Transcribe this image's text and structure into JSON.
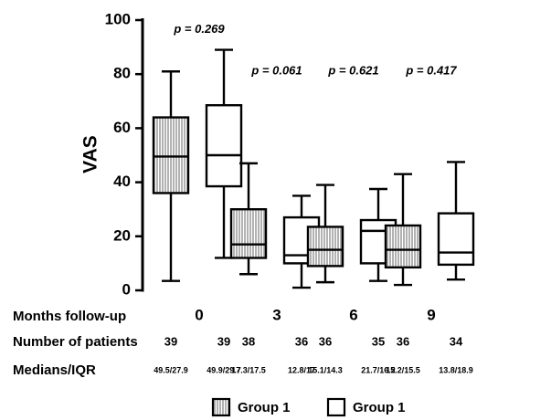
{
  "chart_data": {
    "type": "box",
    "ylabel": "VAS",
    "ylim": [
      0,
      100
    ],
    "yticks": [
      "0",
      "20",
      "40",
      "60",
      "80",
      "100"
    ],
    "row_labels": {
      "months": "Months follow-up",
      "patients": "Number of patients",
      "medians": "Medians/IQR"
    },
    "groups": [
      {
        "month": "0",
        "p_value": "p = 0.269",
        "boxes": [
          {
            "series": "Group 1",
            "whisker_low": 3.5,
            "q1": 36,
            "median": 49.5,
            "q3": 64,
            "whisker_high": 81,
            "n": "39",
            "median_iqr": "49.5/27.9"
          },
          {
            "series": "Group 1",
            "whisker_low": 12,
            "q1": 38.5,
            "median": 50,
            "q3": 68.5,
            "whisker_high": 89,
            "n": "39",
            "median_iqr": "49.9/29.7"
          }
        ]
      },
      {
        "month": "3",
        "p_value": "p = 0.061",
        "boxes": [
          {
            "series": "Group 1",
            "whisker_low": 6,
            "q1": 12,
            "median": 17,
            "q3": 30,
            "whisker_high": 47,
            "n": "38",
            "median_iqr": "17.3/17.5"
          },
          {
            "series": "Group 1",
            "whisker_low": 1,
            "q1": 10,
            "median": 13,
            "q3": 27,
            "whisker_high": 35,
            "n": "36",
            "median_iqr": "12.8/17"
          }
        ]
      },
      {
        "month": "6",
        "p_value": "p = 0.621",
        "boxes": [
          {
            "series": "Group 1",
            "whisker_low": 3,
            "q1": 9,
            "median": 15,
            "q3": 23.5,
            "whisker_high": 39,
            "n": "36",
            "median_iqr": "15.1/14.3"
          },
          {
            "series": "Group 1",
            "whisker_low": 3.5,
            "q1": 10,
            "median": 22,
            "q3": 26,
            "whisker_high": 37.5,
            "n": "35",
            "median_iqr": "21.7/16.2"
          }
        ]
      },
      {
        "month": "9",
        "p_value": "p = 0.417",
        "boxes": [
          {
            "series": "Group 1",
            "whisker_low": 2,
            "q1": 8.5,
            "median": 15,
            "q3": 24,
            "whisker_high": 43,
            "n": "36",
            "median_iqr": "15.2/15.5"
          },
          {
            "series": "Group 1",
            "whisker_low": 4,
            "q1": 9.5,
            "median": 14,
            "q3": 28.5,
            "whisker_high": 47.5,
            "n": "34",
            "median_iqr": "13.8/18.9"
          }
        ]
      }
    ],
    "legend": [
      {
        "label": "Group 1",
        "pattern": "vertical-hatch"
      },
      {
        "label": "Group 1",
        "pattern": "white"
      }
    ],
    "legend_position": "bottom"
  }
}
